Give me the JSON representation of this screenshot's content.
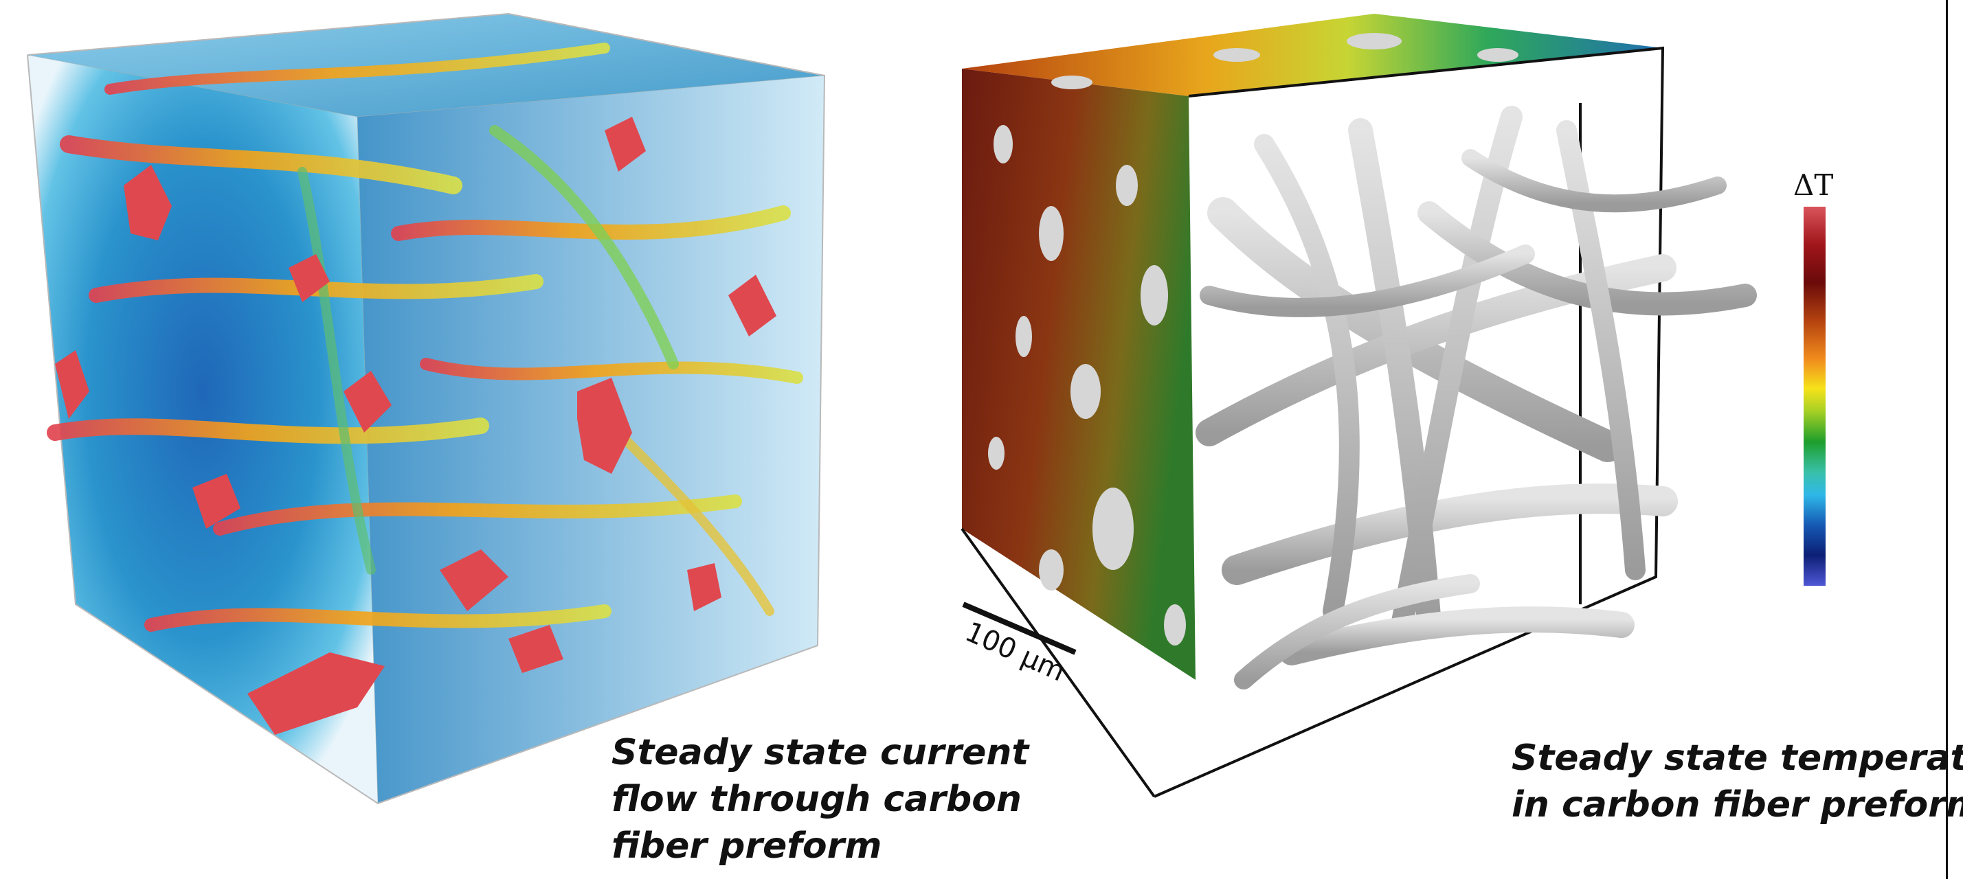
{
  "left_figure": {
    "caption_lines": [
      "Steady state current",
      "flow through carbon",
      "fiber preform"
    ]
  },
  "right_figure": {
    "caption_lines": [
      "Steady state temperature",
      "in carbon fiber preform"
    ],
    "scale_bar_label": "100 μm",
    "colorbar": {
      "label": "ΔT",
      "colors": [
        "#d9545b",
        "#a0161a",
        "#6a0a0a",
        "#b3420f",
        "#f08a1c",
        "#f6e21b",
        "#a5d024",
        "#1e9e2c",
        "#38c0a8",
        "#2fb8e8",
        "#1559b4",
        "#0c1f75",
        "#4f57d6"
      ]
    }
  },
  "colors": {
    "current_background": "#2a8fc8",
    "current_high": "#e0484f",
    "fiber_surface": "#c9c9c9",
    "temperature_hot": "#7a1d0e",
    "temperature_cool": "#1f6fb0"
  }
}
